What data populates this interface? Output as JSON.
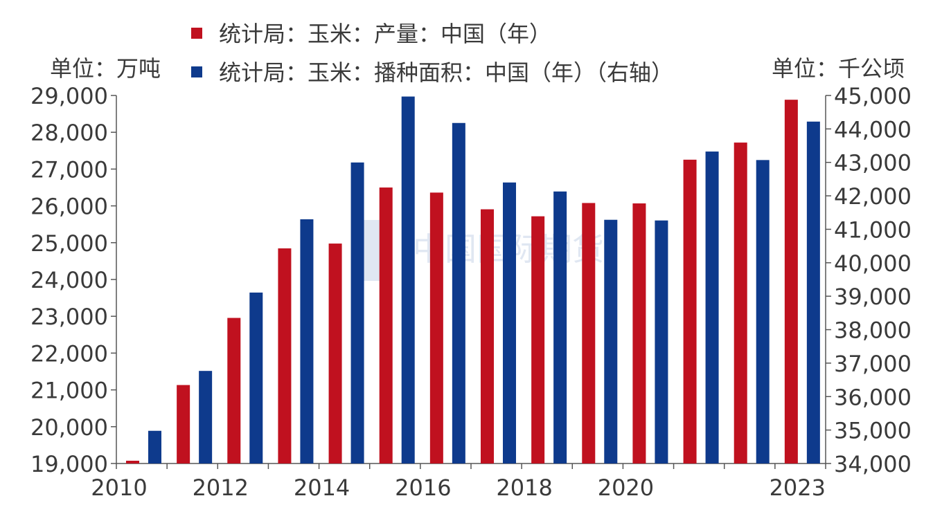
{
  "chart_data": {
    "type": "bar",
    "left_unit_label": "单位：万吨",
    "right_unit_label": "单位：千公顷",
    "x_tick_labels": [
      "2010",
      "2012",
      "2014",
      "2016",
      "2018",
      "2020",
      "2023"
    ],
    "categories": [
      "2010",
      "2011",
      "2012",
      "2013",
      "2014",
      "2015",
      "2016",
      "2017",
      "2018",
      "2019",
      "2020",
      "2021",
      "2022",
      "2023"
    ],
    "series": [
      {
        "name": "统计局：玉米：产量：中国（年）",
        "axis": "left",
        "color": "#c0111f",
        "values": [
          19075,
          21132,
          22956,
          24845,
          24976,
          26499,
          26361,
          25907,
          25717,
          26078,
          26067,
          27255,
          27720,
          28884
        ]
      },
      {
        "name": "统计局：玉米：播种面积：中国（年）（右轴）",
        "axis": "right",
        "color": "#0e3a8c",
        "values": [
          34977,
          36767,
          39109,
          41299,
          42997,
          44968,
          44178,
          42399,
          42130,
          41284,
          41264,
          43324,
          43070,
          44219
        ]
      }
    ],
    "y_left": {
      "min": 19000,
      "max": 29000,
      "step": 1000,
      "tick_labels": [
        "19,000",
        "20,000",
        "21,000",
        "22,000",
        "23,000",
        "24,000",
        "25,000",
        "26,000",
        "27,000",
        "28,000",
        "29,000"
      ]
    },
    "y_right": {
      "min": 34000,
      "max": 45000,
      "step": 1000,
      "tick_labels": [
        "34,000",
        "35,000",
        "36,000",
        "37,000",
        "38,000",
        "39,000",
        "40,000",
        "41,000",
        "42,000",
        "43,000",
        "44,000",
        "45,000"
      ]
    },
    "legend_position": "top",
    "grid": false,
    "watermark": "中国国际期货"
  }
}
